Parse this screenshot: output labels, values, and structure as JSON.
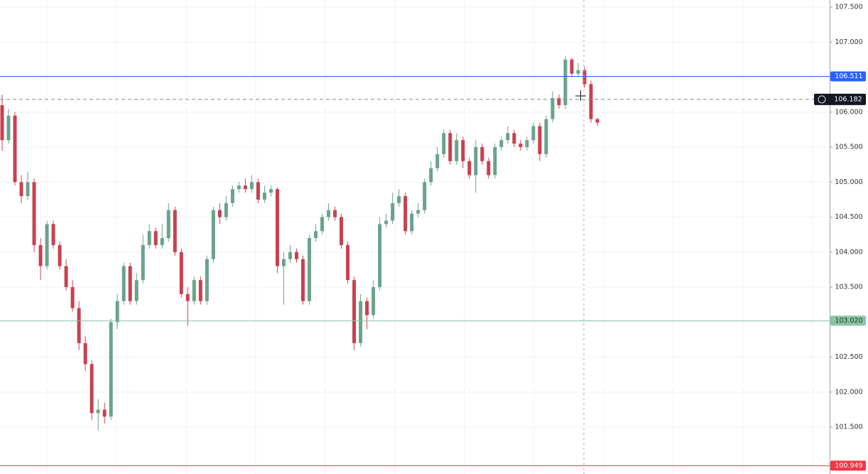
{
  "chart_data": {
    "type": "candlestick",
    "up_color": "#6aa38a",
    "down_color": "#c8414f",
    "grid": true,
    "ylim": [
      100.83,
      107.602
    ],
    "yticks": [
      {
        "value": 101.5,
        "label": "101.500"
      },
      {
        "value": 102,
        "label": "102.000"
      },
      {
        "value": 102.5,
        "label": "102.500"
      },
      {
        "value": 103,
        "label": "103.000"
      },
      {
        "value": 103.5,
        "label": "103.500"
      },
      {
        "value": 104,
        "label": "104.000"
      },
      {
        "value": 104.5,
        "label": "104.500"
      },
      {
        "value": 105,
        "label": "105.000"
      },
      {
        "value": 105.5,
        "label": "105.500"
      },
      {
        "value": 106,
        "label": "106.000"
      },
      {
        "value": 106.5,
        "label": "106.500"
      },
      {
        "value": 107,
        "label": "107.000"
      },
      {
        "value": 107.5,
        "label": "107.500"
      }
    ],
    "open": [
      106.1,
      105.6,
      105.95,
      105.0,
      104.8,
      105.0,
      104.1,
      103.8,
      104.4,
      104.1,
      103.8,
      103.5,
      103.2,
      102.7,
      102.4,
      101.7,
      101.75,
      101.65,
      103.0,
      103.3,
      103.8,
      103.3,
      103.6,
      104.1,
      104.3,
      104.1,
      104.2,
      104.6,
      104.0,
      103.4,
      103.3,
      103.6,
      103.3,
      103.9,
      104.6,
      104.5,
      104.7,
      104.9,
      104.95,
      104.9,
      105.0,
      104.75,
      104.85,
      104.9,
      103.8,
      103.9,
      104.0,
      103.9,
      103.3,
      104.2,
      104.3,
      104.5,
      104.6,
      104.5,
      104.1,
      103.6,
      102.7,
      103.3,
      103.1,
      103.5,
      104.4,
      104.45,
      104.7,
      104.8,
      104.3,
      104.55,
      104.6,
      105.0,
      105.2,
      105.4,
      105.7,
      105.3,
      105.6,
      105.3,
      105.1,
      105.5,
      105.3,
      105.1,
      105.5,
      105.6,
      105.7,
      105.55,
      105.5,
      105.6,
      105.8,
      105.4,
      105.9,
      106.2,
      106.1,
      106.75,
      106.55,
      106.6,
      106.4,
      105.9
    ],
    "high": [
      106.25,
      106.05,
      106.0,
      105.1,
      105.15,
      105.05,
      104.2,
      104.45,
      104.45,
      104.15,
      103.9,
      103.6,
      103.3,
      102.8,
      102.45,
      101.9,
      101.85,
      103.05,
      103.4,
      103.85,
      103.85,
      103.7,
      104.25,
      104.4,
      104.35,
      104.4,
      104.7,
      104.65,
      104.05,
      103.5,
      103.65,
      103.65,
      103.95,
      104.65,
      104.7,
      104.8,
      104.95,
      105.0,
      105.05,
      105.1,
      105.05,
      104.95,
      104.95,
      104.92,
      104.0,
      104.1,
      104.05,
      103.95,
      104.25,
      104.4,
      104.55,
      104.7,
      104.65,
      104.55,
      104.15,
      103.65,
      103.4,
      103.35,
      103.6,
      104.5,
      104.55,
      104.85,
      104.9,
      104.85,
      104.6,
      104.7,
      105.05,
      105.3,
      105.5,
      105.75,
      105.75,
      105.7,
      105.65,
      105.35,
      105.6,
      105.55,
      105.35,
      105.55,
      105.65,
      105.8,
      105.75,
      105.6,
      105.65,
      105.85,
      105.85,
      105.95,
      106.3,
      106.25,
      106.8,
      106.78,
      106.7,
      106.65,
      106.45,
      105.92
    ],
    "low": [
      105.45,
      105.55,
      104.95,
      104.7,
      104.75,
      104.0,
      103.6,
      103.75,
      104.05,
      103.75,
      103.45,
      103.15,
      102.6,
      102.3,
      101.6,
      101.45,
      101.55,
      101.6,
      102.9,
      103.25,
      103.25,
      103.25,
      103.55,
      104.05,
      104.05,
      104.05,
      104.15,
      103.95,
      103.35,
      102.95,
      103.25,
      103.25,
      103.25,
      103.85,
      104.4,
      104.45,
      104.65,
      104.85,
      104.85,
      104.85,
      104.7,
      104.7,
      104.8,
      103.7,
      103.25,
      103.85,
      103.85,
      103.25,
      103.25,
      104.15,
      104.25,
      104.45,
      104.45,
      104.05,
      103.55,
      102.6,
      102.65,
      102.9,
      103.05,
      103.45,
      104.35,
      104.4,
      104.65,
      104.25,
      104.25,
      104.5,
      104.55,
      104.95,
      105.15,
      105.35,
      105.25,
      105.25,
      105.2,
      105.05,
      104.85,
      105.25,
      105.05,
      105.05,
      105.45,
      105.55,
      105.5,
      105.45,
      105.45,
      105.55,
      105.3,
      105.35,
      105.85,
      106.05,
      106.05,
      106.5,
      106.5,
      106.35,
      105.85,
      105.8
    ],
    "close": [
      105.6,
      105.95,
      105.0,
      104.8,
      105.0,
      104.1,
      103.8,
      104.4,
      104.1,
      103.8,
      103.5,
      103.2,
      102.7,
      102.4,
      101.7,
      101.75,
      101.65,
      103.0,
      103.3,
      103.8,
      103.3,
      103.6,
      104.1,
      104.3,
      104.1,
      104.2,
      104.6,
      104.0,
      103.4,
      103.3,
      103.6,
      103.3,
      103.9,
      104.6,
      104.5,
      104.7,
      104.9,
      104.95,
      104.9,
      105.0,
      104.75,
      104.85,
      104.9,
      103.8,
      103.9,
      104.0,
      103.9,
      103.3,
      104.2,
      104.3,
      104.5,
      104.6,
      104.5,
      104.1,
      103.6,
      102.7,
      103.3,
      103.1,
      103.5,
      104.4,
      104.45,
      104.7,
      104.8,
      104.3,
      104.55,
      104.6,
      105.0,
      105.2,
      105.4,
      105.7,
      105.3,
      105.6,
      105.3,
      105.1,
      105.5,
      105.3,
      105.1,
      105.5,
      105.6,
      105.7,
      105.55,
      105.5,
      105.6,
      105.8,
      105.4,
      105.9,
      106.2,
      106.1,
      106.75,
      106.55,
      106.6,
      106.4,
      105.9,
      105.85
    ],
    "price_lines": [
      {
        "value": 106.511,
        "color": "#2962ff",
        "text_color": "#ffffff"
      },
      {
        "value": 103.02,
        "label": "103.020",
        "color": "#8cc3a5",
        "text_color": "#1f3a2b"
      },
      {
        "value": 100.949,
        "color": "#f23645",
        "text_color": "#ffffff"
      }
    ],
    "crosshair": {
      "value": 106.182,
      "color": "#131722",
      "text_color": "#ffffff"
    }
  }
}
